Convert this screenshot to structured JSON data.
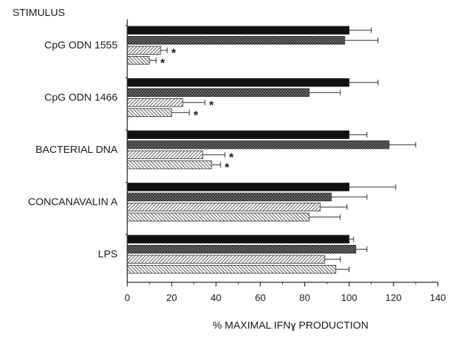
{
  "chart_data": {
    "type": "bar",
    "orientation": "horizontal",
    "stimulus_header": "STIMULUS",
    "xlabel": "% MAXIMAL IFNɣ PRODUCTION",
    "xlim": [
      0,
      140
    ],
    "xticks": [
      0,
      20,
      40,
      60,
      80,
      100,
      120,
      140
    ],
    "grid": false,
    "legend": "none",
    "categories": [
      "CpG ODN 1555",
      "CpG ODN 1466",
      "BACTERIAL DNA",
      "CONCANAVALIN A",
      "LPS"
    ],
    "series": [
      {
        "fill": "black",
        "color": "#111111",
        "values": [
          100,
          100,
          100,
          100,
          100
        ],
        "errors": [
          10,
          13,
          8,
          21,
          2
        ]
      },
      {
        "fill": "crosshatch",
        "color": "#555555",
        "values": [
          98,
          82,
          118,
          92,
          103
        ],
        "errors": [
          15,
          14,
          12,
          16,
          5
        ]
      },
      {
        "fill": "diagonal-right",
        "color": "#777777",
        "values": [
          15,
          25,
          34,
          87,
          89
        ],
        "errors": [
          3,
          10,
          10,
          12,
          7
        ]
      },
      {
        "fill": "diagonal-left",
        "color": "#777777",
        "values": [
          10,
          20,
          38,
          82,
          94
        ],
        "errors": [
          3,
          8,
          4,
          14,
          6
        ]
      }
    ],
    "significance_marker": "*",
    "significant": [
      [
        false,
        false,
        true,
        true
      ],
      [
        false,
        false,
        true,
        true
      ],
      [
        false,
        false,
        true,
        true
      ],
      [
        false,
        false,
        false,
        false
      ],
      [
        false,
        false,
        false,
        false
      ]
    ]
  }
}
